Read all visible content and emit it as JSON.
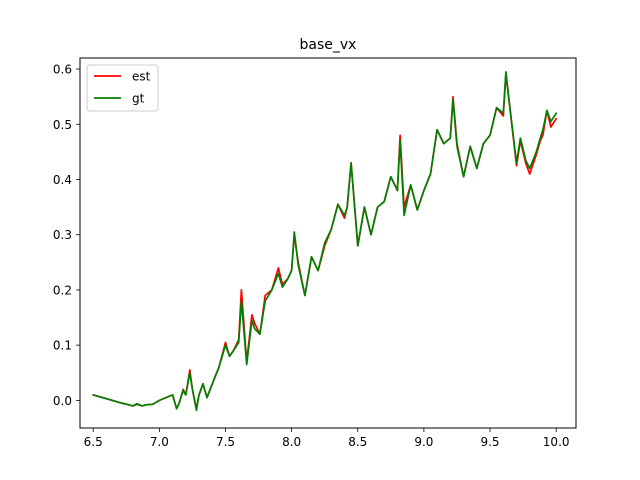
{
  "chart_data": {
    "type": "line",
    "title": "base_vx",
    "xlabel": "",
    "ylabel": "",
    "xlim": [
      6.4,
      10.15
    ],
    "ylim": [
      -0.05,
      0.62
    ],
    "xticks": [
      6.5,
      7.0,
      7.5,
      8.0,
      8.5,
      9.0,
      9.5,
      10.0
    ],
    "xtick_labels": [
      "6.5",
      "7.0",
      "7.5",
      "8.0",
      "8.5",
      "9.0",
      "9.5",
      "10.0"
    ],
    "yticks": [
      0.0,
      0.1,
      0.2,
      0.3,
      0.4,
      0.5,
      0.6
    ],
    "ytick_labels": [
      "0.0",
      "0.1",
      "0.2",
      "0.3",
      "0.4",
      "0.5",
      "0.6"
    ],
    "grid": false,
    "legend_position": "top-left",
    "series": [
      {
        "name": "est",
        "color": "#ff0000",
        "x": [
          6.5,
          6.6,
          6.7,
          6.8,
          6.83,
          6.87,
          6.9,
          6.95,
          7.0,
          7.05,
          7.1,
          7.13,
          7.15,
          7.18,
          7.2,
          7.23,
          7.25,
          7.28,
          7.3,
          7.33,
          7.36,
          7.4,
          7.45,
          7.5,
          7.53,
          7.56,
          7.6,
          7.62,
          7.66,
          7.7,
          7.72,
          7.76,
          7.8,
          7.85,
          7.9,
          7.93,
          7.97,
          8.0,
          8.02,
          8.05,
          8.1,
          8.15,
          8.2,
          8.25,
          8.3,
          8.35,
          8.4,
          8.42,
          8.45,
          8.5,
          8.55,
          8.6,
          8.65,
          8.7,
          8.75,
          8.8,
          8.82,
          8.85,
          8.9,
          8.95,
          9.0,
          9.05,
          9.1,
          9.15,
          9.2,
          9.22,
          9.25,
          9.3,
          9.35,
          9.4,
          9.45,
          9.5,
          9.55,
          9.6,
          9.62,
          9.65,
          9.7,
          9.73,
          9.77,
          9.8,
          9.85,
          9.88,
          9.9,
          9.93,
          9.96,
          10.0
        ],
        "y": [
          0.01,
          0.003,
          -0.004,
          -0.01,
          -0.007,
          -0.01,
          -0.008,
          -0.007,
          0.0,
          0.005,
          0.01,
          -0.015,
          -0.005,
          0.02,
          0.01,
          0.055,
          0.02,
          -0.015,
          0.01,
          0.03,
          0.005,
          0.03,
          0.06,
          0.105,
          0.08,
          0.09,
          0.11,
          0.2,
          0.07,
          0.155,
          0.14,
          0.12,
          0.19,
          0.2,
          0.24,
          0.21,
          0.22,
          0.235,
          0.3,
          0.25,
          0.19,
          0.26,
          0.235,
          0.28,
          0.31,
          0.355,
          0.33,
          0.35,
          0.43,
          0.28,
          0.35,
          0.3,
          0.35,
          0.36,
          0.405,
          0.38,
          0.48,
          0.35,
          0.39,
          0.345,
          0.38,
          0.41,
          0.49,
          0.465,
          0.475,
          0.55,
          0.465,
          0.405,
          0.46,
          0.42,
          0.465,
          0.48,
          0.53,
          0.515,
          0.59,
          0.53,
          0.425,
          0.47,
          0.43,
          0.41,
          0.445,
          0.47,
          0.48,
          0.525,
          0.495,
          0.51
        ]
      },
      {
        "name": "gt",
        "color": "#008000",
        "x": [
          6.5,
          6.6,
          6.7,
          6.8,
          6.83,
          6.87,
          6.9,
          6.95,
          7.0,
          7.05,
          7.1,
          7.13,
          7.15,
          7.18,
          7.2,
          7.23,
          7.25,
          7.28,
          7.3,
          7.33,
          7.36,
          7.4,
          7.45,
          7.5,
          7.53,
          7.56,
          7.6,
          7.62,
          7.66,
          7.7,
          7.72,
          7.76,
          7.8,
          7.85,
          7.9,
          7.93,
          7.97,
          8.0,
          8.02,
          8.05,
          8.1,
          8.15,
          8.2,
          8.25,
          8.3,
          8.35,
          8.4,
          8.42,
          8.45,
          8.5,
          8.55,
          8.6,
          8.65,
          8.7,
          8.75,
          8.8,
          8.82,
          8.85,
          8.9,
          8.95,
          9.0,
          9.05,
          9.1,
          9.15,
          9.2,
          9.22,
          9.25,
          9.3,
          9.35,
          9.4,
          9.45,
          9.5,
          9.55,
          9.6,
          9.62,
          9.65,
          9.7,
          9.73,
          9.77,
          9.8,
          9.85,
          9.88,
          9.9,
          9.93,
          9.96,
          10.0
        ],
        "y": [
          0.01,
          0.003,
          -0.004,
          -0.01,
          -0.006,
          -0.01,
          -0.008,
          -0.007,
          0.0,
          0.005,
          0.01,
          -0.015,
          -0.005,
          0.018,
          0.01,
          0.05,
          0.02,
          -0.018,
          0.01,
          0.03,
          0.005,
          0.03,
          0.06,
          0.1,
          0.08,
          0.09,
          0.105,
          0.18,
          0.065,
          0.145,
          0.13,
          0.12,
          0.18,
          0.2,
          0.23,
          0.205,
          0.22,
          0.235,
          0.305,
          0.245,
          0.19,
          0.26,
          0.235,
          0.285,
          0.31,
          0.355,
          0.335,
          0.35,
          0.43,
          0.28,
          0.35,
          0.3,
          0.35,
          0.36,
          0.405,
          0.38,
          0.47,
          0.335,
          0.39,
          0.345,
          0.38,
          0.41,
          0.49,
          0.465,
          0.475,
          0.545,
          0.46,
          0.405,
          0.46,
          0.42,
          0.465,
          0.48,
          0.53,
          0.52,
          0.595,
          0.53,
          0.43,
          0.475,
          0.435,
          0.42,
          0.45,
          0.475,
          0.49,
          0.525,
          0.505,
          0.52
        ]
      }
    ]
  }
}
